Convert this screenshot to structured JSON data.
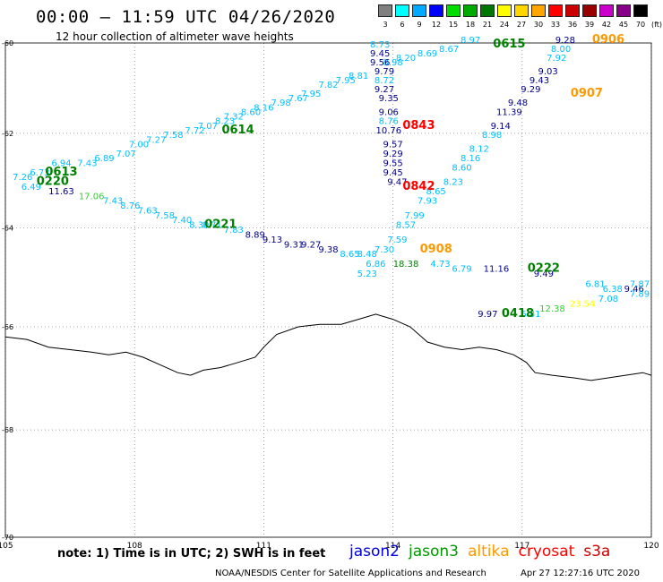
{
  "header": {
    "title": "00:00 – 11:59 UTC 04/26/2020",
    "subtitle": "12 hour collection of altimeter wave heights"
  },
  "color_scale": {
    "unit": "(ft)",
    "steps": [
      {
        "label": "3",
        "color": "#808080"
      },
      {
        "label": "6",
        "color": "#00ffff"
      },
      {
        "label": "9",
        "color": "#00aaff"
      },
      {
        "label": "12",
        "color": "#0000ff"
      },
      {
        "label": "15",
        "color": "#00dd00"
      },
      {
        "label": "18",
        "color": "#00aa00"
      },
      {
        "label": "21",
        "color": "#007700"
      },
      {
        "label": "24",
        "color": "#ffff00"
      },
      {
        "label": "27",
        "color": "#ffd700"
      },
      {
        "label": "30",
        "color": "#ffa500"
      },
      {
        "label": "33",
        "color": "#ff0000"
      },
      {
        "label": "36",
        "color": "#cc0000"
      },
      {
        "label": "39",
        "color": "#990000"
      },
      {
        "label": "42",
        "color": "#cc00cc"
      },
      {
        "label": "45",
        "color": "#880088"
      },
      {
        "label": "70",
        "color": "#000000"
      }
    ]
  },
  "map": {
    "lat_range": [
      -70,
      -60
    ],
    "lon_range": [
      105,
      120
    ],
    "lat_labels": [
      "-60",
      "-62",
      "-64",
      "-66",
      "-68",
      "-70"
    ],
    "lon_labels": [
      "105",
      "108",
      "111",
      "114",
      "117",
      "120"
    ]
  },
  "colors": {
    "cyan": "#00bfff",
    "navy": "#00008b",
    "green": "#008000",
    "lgreen": "#33cc33",
    "red": "#ff0000",
    "orange": "#ff9900",
    "yellow": "#ffff00",
    "darkred": "#cc0000"
  },
  "track_labels": [
    {
      "text": "0613",
      "lon": 106.3,
      "lat": -62.9,
      "c": "green"
    },
    {
      "text": "0220",
      "lon": 106.1,
      "lat": -63.1,
      "c": "green"
    },
    {
      "text": "0614",
      "lon": 110.4,
      "lat": -62.0,
      "c": "green"
    },
    {
      "text": "0221",
      "lon": 110.0,
      "lat": -64.0,
      "c": "green"
    },
    {
      "text": "0615",
      "lon": 116.7,
      "lat": -60.1,
      "c": "green"
    },
    {
      "text": "0843",
      "lon": 114.6,
      "lat": -61.9,
      "c": "red"
    },
    {
      "text": "0842",
      "lon": 114.6,
      "lat": -63.2,
      "c": "red"
    },
    {
      "text": "0906",
      "lon": 119.0,
      "lat": -60.0,
      "c": "orange"
    },
    {
      "text": "0907",
      "lon": 118.5,
      "lat": -61.2,
      "c": "orange"
    },
    {
      "text": "0908",
      "lon": 115.0,
      "lat": -64.5,
      "c": "orange"
    },
    {
      "text": "0222",
      "lon": 117.5,
      "lat": -64.9,
      "c": "green"
    },
    {
      "text": "0418",
      "lon": 116.9,
      "lat": -65.8,
      "c": "green"
    }
  ],
  "readings": [
    {
      "v": "6.73",
      "lon": 105.8,
      "lat": -62.9,
      "c": "cyan"
    },
    {
      "v": "7.26",
      "lon": 105.4,
      "lat": -63.0,
      "c": "cyan"
    },
    {
      "v": "6.94",
      "lon": 106.3,
      "lat": -62.7,
      "c": "cyan"
    },
    {
      "v": "7.43",
      "lon": 106.9,
      "lat": -62.7,
      "c": "cyan"
    },
    {
      "v": "6.89",
      "lon": 107.3,
      "lat": -62.6,
      "c": "cyan"
    },
    {
      "v": "7.07",
      "lon": 107.8,
      "lat": -62.5,
      "c": "cyan"
    },
    {
      "v": "7.00",
      "lon": 108.1,
      "lat": -62.3,
      "c": "cyan"
    },
    {
      "v": "7.27",
      "lon": 108.5,
      "lat": -62.2,
      "c": "cyan"
    },
    {
      "v": "7.58",
      "lon": 108.9,
      "lat": -62.1,
      "c": "cyan"
    },
    {
      "v": "7.72",
      "lon": 109.4,
      "lat": -62.0,
      "c": "cyan"
    },
    {
      "v": "7.07",
      "lon": 109.7,
      "lat": -61.9,
      "c": "cyan"
    },
    {
      "v": "8.23",
      "lon": 110.1,
      "lat": -61.8,
      "c": "cyan"
    },
    {
      "v": "7.32",
      "lon": 110.3,
      "lat": -61.7,
      "c": "cyan"
    },
    {
      "v": "8.60",
      "lon": 110.7,
      "lat": -61.6,
      "c": "cyan"
    },
    {
      "v": "8.16",
      "lon": 111.0,
      "lat": -61.5,
      "c": "cyan"
    },
    {
      "v": "7.98",
      "lon": 111.4,
      "lat": -61.4,
      "c": "cyan"
    },
    {
      "v": "7.67",
      "lon": 111.8,
      "lat": -61.3,
      "c": "cyan"
    },
    {
      "v": "7.95",
      "lon": 112.1,
      "lat": -61.2,
      "c": "cyan"
    },
    {
      "v": "7.82",
      "lon": 112.5,
      "lat": -61.0,
      "c": "cyan"
    },
    {
      "v": "7.95",
      "lon": 112.9,
      "lat": -60.9,
      "c": "cyan"
    },
    {
      "v": "8.81",
      "lon": 113.2,
      "lat": -60.8,
      "c": "cyan"
    },
    {
      "v": "8.73",
      "lon": 113.7,
      "lat": -60.1,
      "c": "cyan"
    },
    {
      "v": "8.98",
      "lon": 114.0,
      "lat": -60.5,
      "c": "cyan"
    },
    {
      "v": "8.20",
      "lon": 114.3,
      "lat": -60.4,
      "c": "cyan"
    },
    {
      "v": "8.69",
      "lon": 114.8,
      "lat": -60.3,
      "c": "cyan"
    },
    {
      "v": "8.67",
      "lon": 115.3,
      "lat": -60.2,
      "c": "cyan"
    },
    {
      "v": "8.97",
      "lon": 115.8,
      "lat": -60.0,
      "c": "cyan"
    },
    {
      "v": "9.45",
      "lon": 113.7,
      "lat": -60.3,
      "c": "navy"
    },
    {
      "v": "9.56",
      "lon": 113.7,
      "lat": -60.5,
      "c": "navy"
    },
    {
      "v": "9.79",
      "lon": 113.8,
      "lat": -60.7,
      "c": "navy"
    },
    {
      "v": "8.72",
      "lon": 113.8,
      "lat": -60.9,
      "c": "cyan"
    },
    {
      "v": "9.27",
      "lon": 113.8,
      "lat": -61.1,
      "c": "navy"
    },
    {
      "v": "9.35",
      "lon": 113.9,
      "lat": -61.3,
      "c": "navy"
    },
    {
      "v": "9.06",
      "lon": 113.9,
      "lat": -61.6,
      "c": "navy"
    },
    {
      "v": "8.76",
      "lon": 113.9,
      "lat": -61.8,
      "c": "cyan"
    },
    {
      "v": "10.76",
      "lon": 113.9,
      "lat": -62.0,
      "c": "navy"
    },
    {
      "v": "9.57",
      "lon": 114.0,
      "lat": -62.3,
      "c": "navy"
    },
    {
      "v": "9.29",
      "lon": 114.0,
      "lat": -62.5,
      "c": "navy"
    },
    {
      "v": "9.55",
      "lon": 114.0,
      "lat": -62.7,
      "c": "navy"
    },
    {
      "v": "9.45",
      "lon": 114.0,
      "lat": -62.9,
      "c": "navy"
    },
    {
      "v": "9.47",
      "lon": 114.1,
      "lat": -63.1,
      "c": "navy"
    },
    {
      "v": "9.28",
      "lon": 118.0,
      "lat": -60.0,
      "c": "navy"
    },
    {
      "v": "8.00",
      "lon": 117.9,
      "lat": -60.2,
      "c": "cyan"
    },
    {
      "v": "7.92",
      "lon": 117.8,
      "lat": -60.4,
      "c": "cyan"
    },
    {
      "v": "9.03",
      "lon": 117.6,
      "lat": -60.7,
      "c": "navy"
    },
    {
      "v": "9.43",
      "lon": 117.4,
      "lat": -60.9,
      "c": "navy"
    },
    {
      "v": "9.29",
      "lon": 117.2,
      "lat": -61.1,
      "c": "navy"
    },
    {
      "v": "9.48",
      "lon": 116.9,
      "lat": -61.4,
      "c": "navy"
    },
    {
      "v": "11.39",
      "lon": 116.7,
      "lat": -61.6,
      "c": "navy"
    },
    {
      "v": "9.14",
      "lon": 116.5,
      "lat": -61.9,
      "c": "navy"
    },
    {
      "v": "8.98",
      "lon": 116.3,
      "lat": -62.1,
      "c": "cyan"
    },
    {
      "v": "8.12",
      "lon": 116.0,
      "lat": -62.4,
      "c": "cyan"
    },
    {
      "v": "8.16",
      "lon": 115.8,
      "lat": -62.6,
      "c": "cyan"
    },
    {
      "v": "8.60",
      "lon": 115.6,
      "lat": -62.8,
      "c": "cyan"
    },
    {
      "v": "8.23",
      "lon": 115.4,
      "lat": -63.1,
      "c": "cyan"
    },
    {
      "v": "8.65",
      "lon": 115.0,
      "lat": -63.3,
      "c": "cyan"
    },
    {
      "v": "7.93",
      "lon": 114.8,
      "lat": -63.5,
      "c": "cyan"
    },
    {
      "v": "7.99",
      "lon": 114.5,
      "lat": -63.8,
      "c": "cyan"
    },
    {
      "v": "8.57",
      "lon": 114.3,
      "lat": -64.0,
      "c": "cyan"
    },
    {
      "v": "7.59",
      "lon": 114.1,
      "lat": -64.3,
      "c": "cyan"
    },
    {
      "v": "6.49",
      "lon": 105.6,
      "lat": -63.2,
      "c": "cyan"
    },
    {
      "v": "11.63",
      "lon": 106.3,
      "lat": -63.3,
      "c": "navy"
    },
    {
      "v": "17.06",
      "lon": 107.0,
      "lat": -63.4,
      "c": "lgreen"
    },
    {
      "v": "7.43",
      "lon": 107.5,
      "lat": -63.5,
      "c": "cyan"
    },
    {
      "v": "8.76",
      "lon": 107.9,
      "lat": -63.6,
      "c": "cyan"
    },
    {
      "v": "7.63",
      "lon": 108.3,
      "lat": -63.7,
      "c": "cyan"
    },
    {
      "v": "7.58",
      "lon": 108.7,
      "lat": -63.8,
      "c": "cyan"
    },
    {
      "v": "7.40",
      "lon": 109.1,
      "lat": -63.9,
      "c": "cyan"
    },
    {
      "v": "8.30",
      "lon": 109.5,
      "lat": -64.0,
      "c": "cyan"
    },
    {
      "v": "8.71",
      "lon": 109.8,
      "lat": -64.0,
      "c": "cyan"
    },
    {
      "v": "7.83",
      "lon": 110.3,
      "lat": -64.1,
      "c": "cyan"
    },
    {
      "v": "8.89",
      "lon": 110.8,
      "lat": -64.2,
      "c": "navy"
    },
    {
      "v": "9.13",
      "lon": 111.2,
      "lat": -64.3,
      "c": "navy"
    },
    {
      "v": "9.31",
      "lon": 111.7,
      "lat": -64.4,
      "c": "navy"
    },
    {
      "v": "9.27",
      "lon": 112.1,
      "lat": -64.4,
      "c": "navy"
    },
    {
      "v": "9.38",
      "lon": 112.5,
      "lat": -64.5,
      "c": "navy"
    },
    {
      "v": "8.65",
      "lon": 113.0,
      "lat": -64.6,
      "c": "cyan"
    },
    {
      "v": "8.48",
      "lon": 113.4,
      "lat": -64.6,
      "c": "cyan"
    },
    {
      "v": "7.30",
      "lon": 113.8,
      "lat": -64.5,
      "c": "cyan"
    },
    {
      "v": "6.86",
      "lon": 113.6,
      "lat": -64.8,
      "c": "cyan"
    },
    {
      "v": "18.38",
      "lon": 114.3,
      "lat": -64.8,
      "c": "green"
    },
    {
      "v": "5.23",
      "lon": 113.4,
      "lat": -65.0,
      "c": "cyan"
    },
    {
      "v": "4.73",
      "lon": 115.1,
      "lat": -64.8,
      "c": "cyan"
    },
    {
      "v": "6.79",
      "lon": 115.6,
      "lat": -64.9,
      "c": "cyan"
    },
    {
      "v": "11.16",
      "lon": 116.4,
      "lat": -64.9,
      "c": "navy"
    },
    {
      "v": "9.49",
      "lon": 117.5,
      "lat": -65.0,
      "c": "navy"
    },
    {
      "v": "9.97",
      "lon": 116.2,
      "lat": -65.8,
      "c": "navy"
    },
    {
      "v": "6.81",
      "lon": 117.2,
      "lat": -65.8,
      "c": "cyan"
    },
    {
      "v": "12.38",
      "lon": 117.7,
      "lat": -65.7,
      "c": "lgreen"
    },
    {
      "v": "6.81",
      "lon": 118.7,
      "lat": -65.2,
      "c": "cyan"
    },
    {
      "v": "6.38",
      "lon": 119.1,
      "lat": -65.3,
      "c": "cyan"
    },
    {
      "v": "7.08",
      "lon": 119.0,
      "lat": -65.5,
      "c": "cyan"
    },
    {
      "v": "9.46",
      "lon": 119.6,
      "lat": -65.3,
      "c": "navy"
    },
    {
      "v": "23.54",
      "lon": 118.4,
      "lat": -65.6,
      "c": "yellow"
    },
    {
      "v": "7.87",
      "lon": 120.0,
      "lat": -65.2,
      "c": "cyan"
    },
    {
      "v": "7.89",
      "lon": 120.2,
      "lat": -65.4,
      "c": "cyan"
    }
  ],
  "coastline": [
    [
      105.0,
      -66.2
    ],
    [
      105.5,
      -66.25
    ],
    [
      106.0,
      -66.4
    ],
    [
      106.5,
      -66.45
    ],
    [
      107.0,
      -66.5
    ],
    [
      107.4,
      -66.55
    ],
    [
      107.8,
      -66.5
    ],
    [
      108.2,
      -66.6
    ],
    [
      108.6,
      -66.75
    ],
    [
      109.0,
      -66.9
    ],
    [
      109.3,
      -66.95
    ],
    [
      109.6,
      -66.85
    ],
    [
      110.0,
      -66.8
    ],
    [
      110.4,
      -66.7
    ],
    [
      110.8,
      -66.6
    ],
    [
      111.0,
      -66.4
    ],
    [
      111.3,
      -66.15
    ],
    [
      111.8,
      -66.0
    ],
    [
      112.3,
      -65.95
    ],
    [
      112.8,
      -65.95
    ],
    [
      113.2,
      -65.85
    ],
    [
      113.6,
      -65.75
    ],
    [
      114.0,
      -65.85
    ],
    [
      114.4,
      -66.0
    ],
    [
      114.8,
      -66.3
    ],
    [
      115.2,
      -66.4
    ],
    [
      115.6,
      -66.45
    ],
    [
      116.0,
      -66.4
    ],
    [
      116.4,
      -66.45
    ],
    [
      116.8,
      -66.55
    ],
    [
      117.1,
      -66.7
    ],
    [
      117.3,
      -66.9
    ],
    [
      117.7,
      -66.95
    ],
    [
      118.2,
      -67.0
    ],
    [
      118.6,
      -67.05
    ],
    [
      119.0,
      -67.0
    ],
    [
      119.4,
      -66.95
    ],
    [
      119.8,
      -66.9
    ],
    [
      120.0,
      -66.95
    ]
  ],
  "footer": {
    "note": "note: 1) Time is in UTC; 2) SWH is in feet",
    "satellites": [
      {
        "name": "jason2",
        "color": "#0000dd"
      },
      {
        "name": "jason3",
        "color": "#009900"
      },
      {
        "name": "altika",
        "color": "#ff9900"
      },
      {
        "name": "cryosat",
        "color": "#ff0000"
      },
      {
        "name": "s3a",
        "color": "#cc0000"
      }
    ],
    "credit": "NOAA/NESDIS Center for Satellite Applications and Research",
    "timestamp": "Apr 27 12:27:16 UTC 2020"
  }
}
